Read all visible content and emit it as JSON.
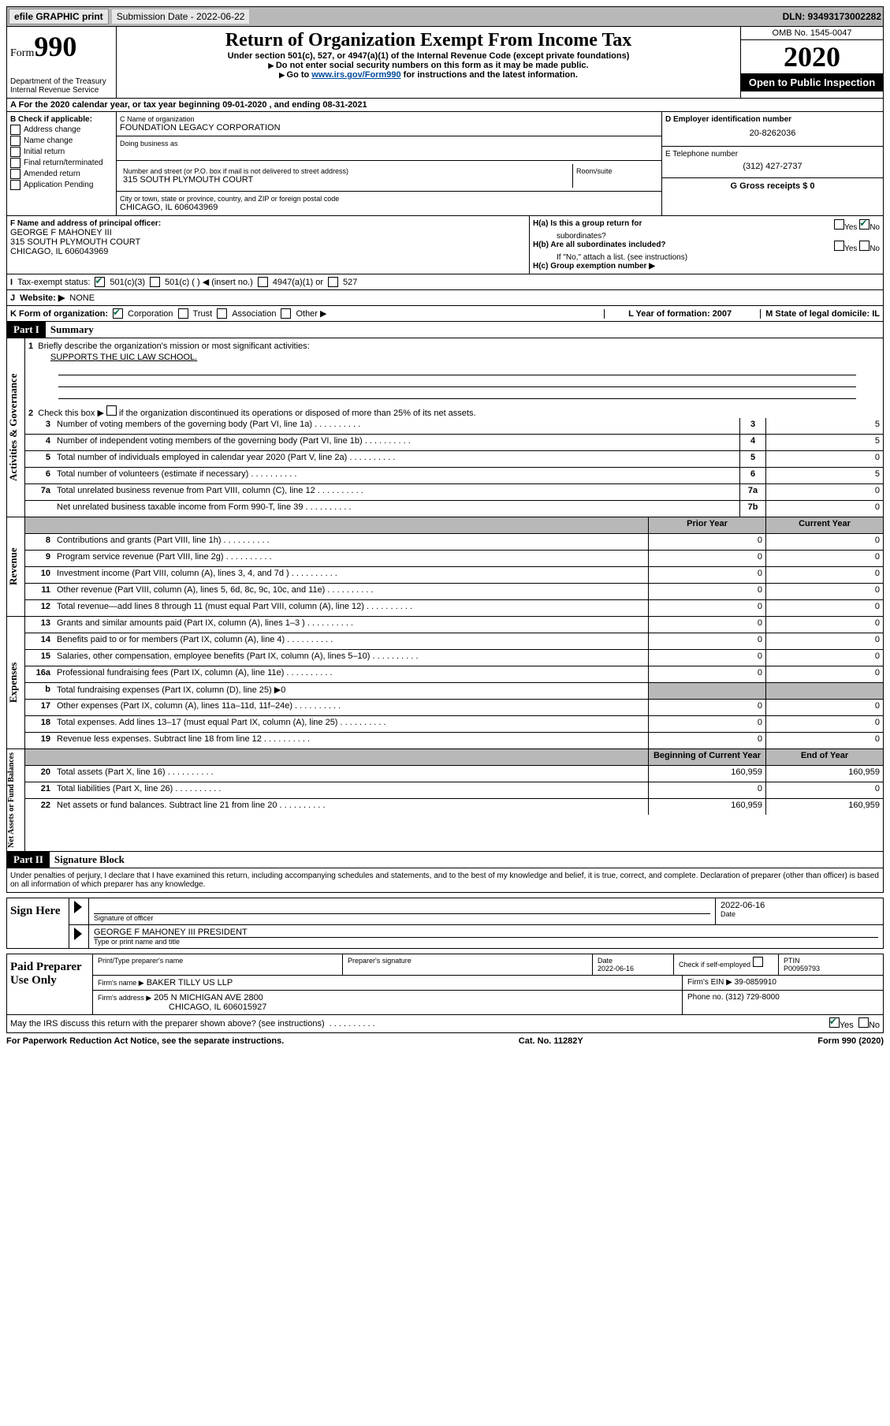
{
  "topbar": {
    "efile": "efile GRAPHIC print",
    "sub_label": "Submission Date - 2022-06-22",
    "dln": "DLN: 93493173002282"
  },
  "header": {
    "form_word": "Form",
    "form_num": "990",
    "dept": "Department of the Treasury",
    "irs": "Internal Revenue Service",
    "title": "Return of Organization Exempt From Income Tax",
    "subtitle": "Under section 501(c), 527, or 4947(a)(1) of the Internal Revenue Code (except private foundations)",
    "note1": "Do not enter social security numbers on this form as it may be made public.",
    "note2_pre": "Go to ",
    "note2_link": "www.irs.gov/Form990",
    "note2_post": " for instructions and the latest information.",
    "omb": "OMB No. 1545-0047",
    "year": "2020",
    "inspection": "Open to Public Inspection"
  },
  "lineA": "For the 2020 calendar year, or tax year beginning 09-01-2020    , and ending 08-31-2021",
  "sectionB": {
    "b_label": "B Check if applicable:",
    "opts": [
      "Address change",
      "Name change",
      "Initial return",
      "Final return/terminated",
      "Amended return",
      "Application Pending"
    ],
    "c_label": "C Name of organization",
    "org_name": "FOUNDATION LEGACY CORPORATION",
    "dba_label": "Doing business as",
    "street_label": "Number and street (or P.O. box if mail is not delivered to street address)",
    "room_label": "Room/suite",
    "street": "315 SOUTH PLYMOUTH COURT",
    "city_label": "City or town, state or province, country, and ZIP or foreign postal code",
    "city": "CHICAGO, IL  606043969",
    "d_label": "D Employer identification number",
    "ein": "20-8262036",
    "e_label": "E Telephone number",
    "phone": "(312) 427-2737",
    "g_label": "G Gross receipts $ 0",
    "f_label": "F  Name and address of principal officer:",
    "officer_name": "GEORGE F MAHONEY III",
    "officer_addr1": "315 SOUTH PLYMOUTH COURT",
    "officer_addr2": "CHICAGO, IL  606043969",
    "ha": "H(a)  Is this a group return for",
    "ha2": "subordinates?",
    "hb": "H(b)  Are all subordinates included?",
    "hb_note": "If \"No,\" attach a list. (see instructions)",
    "hc": "H(c)  Group exemption number ▶",
    "yes": "Yes",
    "no": "No"
  },
  "lineI": {
    "label": "Tax-exempt status:",
    "o1": "501(c)(3)",
    "o2": "501(c) (  ) ◀ (insert no.)",
    "o3": "4947(a)(1) or",
    "o4": "527"
  },
  "lineJ": {
    "label": "Website: ▶",
    "val": "NONE"
  },
  "lineK": {
    "label": "K Form of organization:",
    "o1": "Corporation",
    "o2": "Trust",
    "o3": "Association",
    "o4": "Other ▶",
    "l_label": "L Year of formation: 2007",
    "m_label": "M State of legal domicile: IL"
  },
  "part1": {
    "label": "Part I",
    "title": "Summary"
  },
  "summary": {
    "l1": "Briefly describe the organization's mission or most significant activities:",
    "l1_text": "SUPPORTS THE UIC LAW SCHOOL.",
    "l2_pre": "Check this box ▶",
    "l2_post": " if the organization discontinued its operations or disposed of more than 25% of its net assets.",
    "lines": [
      {
        "n": "3",
        "t": "Number of voting members of the governing body (Part VI, line 1a)",
        "ln": "3",
        "v": "5"
      },
      {
        "n": "4",
        "t": "Number of independent voting members of the governing body (Part VI, line 1b)",
        "ln": "4",
        "v": "5"
      },
      {
        "n": "5",
        "t": "Total number of individuals employed in calendar year 2020 (Part V, line 2a)",
        "ln": "5",
        "v": "0"
      },
      {
        "n": "6",
        "t": "Total number of volunteers (estimate if necessary)",
        "ln": "6",
        "v": "5"
      },
      {
        "n": "7a",
        "t": "Total unrelated business revenue from Part VIII, column (C), line 12",
        "ln": "7a",
        "v": "0"
      },
      {
        "n": "",
        "t": "Net unrelated business taxable income from Form 990-T, line 39",
        "ln": "7b",
        "v": "0"
      }
    ]
  },
  "cols": {
    "prior": "Prior Year",
    "current": "Current Year",
    "begin": "Beginning of Current Year",
    "end": "End of Year"
  },
  "revenue": [
    {
      "n": "8",
      "t": "Contributions and grants (Part VIII, line 1h)",
      "p": "0",
      "c": "0"
    },
    {
      "n": "9",
      "t": "Program service revenue (Part VIII, line 2g)",
      "p": "0",
      "c": "0"
    },
    {
      "n": "10",
      "t": "Investment income (Part VIII, column (A), lines 3, 4, and 7d )",
      "p": "0",
      "c": "0"
    },
    {
      "n": "11",
      "t": "Other revenue (Part VIII, column (A), lines 5, 6d, 8c, 9c, 10c, and 11e)",
      "p": "0",
      "c": "0"
    },
    {
      "n": "12",
      "t": "Total revenue—add lines 8 through 11 (must equal Part VIII, column (A), line 12)",
      "p": "0",
      "c": "0"
    }
  ],
  "expenses": [
    {
      "n": "13",
      "t": "Grants and similar amounts paid (Part IX, column (A), lines 1–3 )",
      "p": "0",
      "c": "0"
    },
    {
      "n": "14",
      "t": "Benefits paid to or for members (Part IX, column (A), line 4)",
      "p": "0",
      "c": "0"
    },
    {
      "n": "15",
      "t": "Salaries, other compensation, employee benefits (Part IX, column (A), lines 5–10)",
      "p": "0",
      "c": "0"
    },
    {
      "n": "16a",
      "t": "Professional fundraising fees (Part IX, column (A), line 11e)",
      "p": "0",
      "c": "0"
    },
    {
      "n": "b",
      "t": "Total fundraising expenses (Part IX, column (D), line 25) ▶0",
      "grey": true
    },
    {
      "n": "17",
      "t": "Other expenses (Part IX, column (A), lines 11a–11d, 11f–24e)",
      "p": "0",
      "c": "0"
    },
    {
      "n": "18",
      "t": "Total expenses. Add lines 13–17 (must equal Part IX, column (A), line 25)",
      "p": "0",
      "c": "0"
    },
    {
      "n": "19",
      "t": "Revenue less expenses. Subtract line 18 from line 12",
      "p": "0",
      "c": "0"
    }
  ],
  "assets": [
    {
      "n": "20",
      "t": "Total assets (Part X, line 16)",
      "p": "160,959",
      "c": "160,959"
    },
    {
      "n": "21",
      "t": "Total liabilities (Part X, line 26)",
      "p": "0",
      "c": "0"
    },
    {
      "n": "22",
      "t": "Net assets or fund balances. Subtract line 21 from line 20",
      "p": "160,959",
      "c": "160,959"
    }
  ],
  "vtabs": {
    "gov": "Activities & Governance",
    "rev": "Revenue",
    "exp": "Expenses",
    "net": "Net Assets or Fund Balances"
  },
  "part2": {
    "label": "Part II",
    "title": "Signature Block"
  },
  "sig": {
    "decl": "Under penalties of perjury, I declare that I have examined this return, including accompanying schedules and statements, and to the best of my knowledge and belief, it is true, correct, and complete. Declaration of preparer (other than officer) is based on all information of which preparer has any knowledge.",
    "sign_here": "Sign Here",
    "sig_officer": "Signature of officer",
    "date": "Date",
    "date_val": "2022-06-16",
    "name_title": "GEORGE F MAHONEY III  PRESIDENT",
    "type_label": "Type or print name and title",
    "paid": "Paid Preparer Use Only",
    "prep_name_label": "Print/Type preparer's name",
    "prep_sig_label": "Preparer's signature",
    "date_label2": "Date",
    "date_val2": "2022-06-16",
    "check_label": "Check         if self-employed",
    "ptin_label": "PTIN",
    "ptin": "P00959793",
    "firm_name_label": "Firm's name      ▶",
    "firm_name": "BAKER TILLY US LLP",
    "firm_ein_label": "Firm's EIN ▶",
    "firm_ein": "39-0859910",
    "firm_addr_label": "Firm's address ▶",
    "firm_addr1": "205 N MICHIGAN AVE 2800",
    "firm_addr2": "CHICAGO, IL  606015927",
    "phone_label": "Phone no.",
    "phone": "(312) 729-8000",
    "discuss": "May the IRS discuss this return with the preparer shown above? (see instructions)"
  },
  "footer": {
    "pra": "For Paperwork Reduction Act Notice, see the separate instructions.",
    "cat": "Cat. No. 11282Y",
    "form": "Form 990 (2020)"
  }
}
